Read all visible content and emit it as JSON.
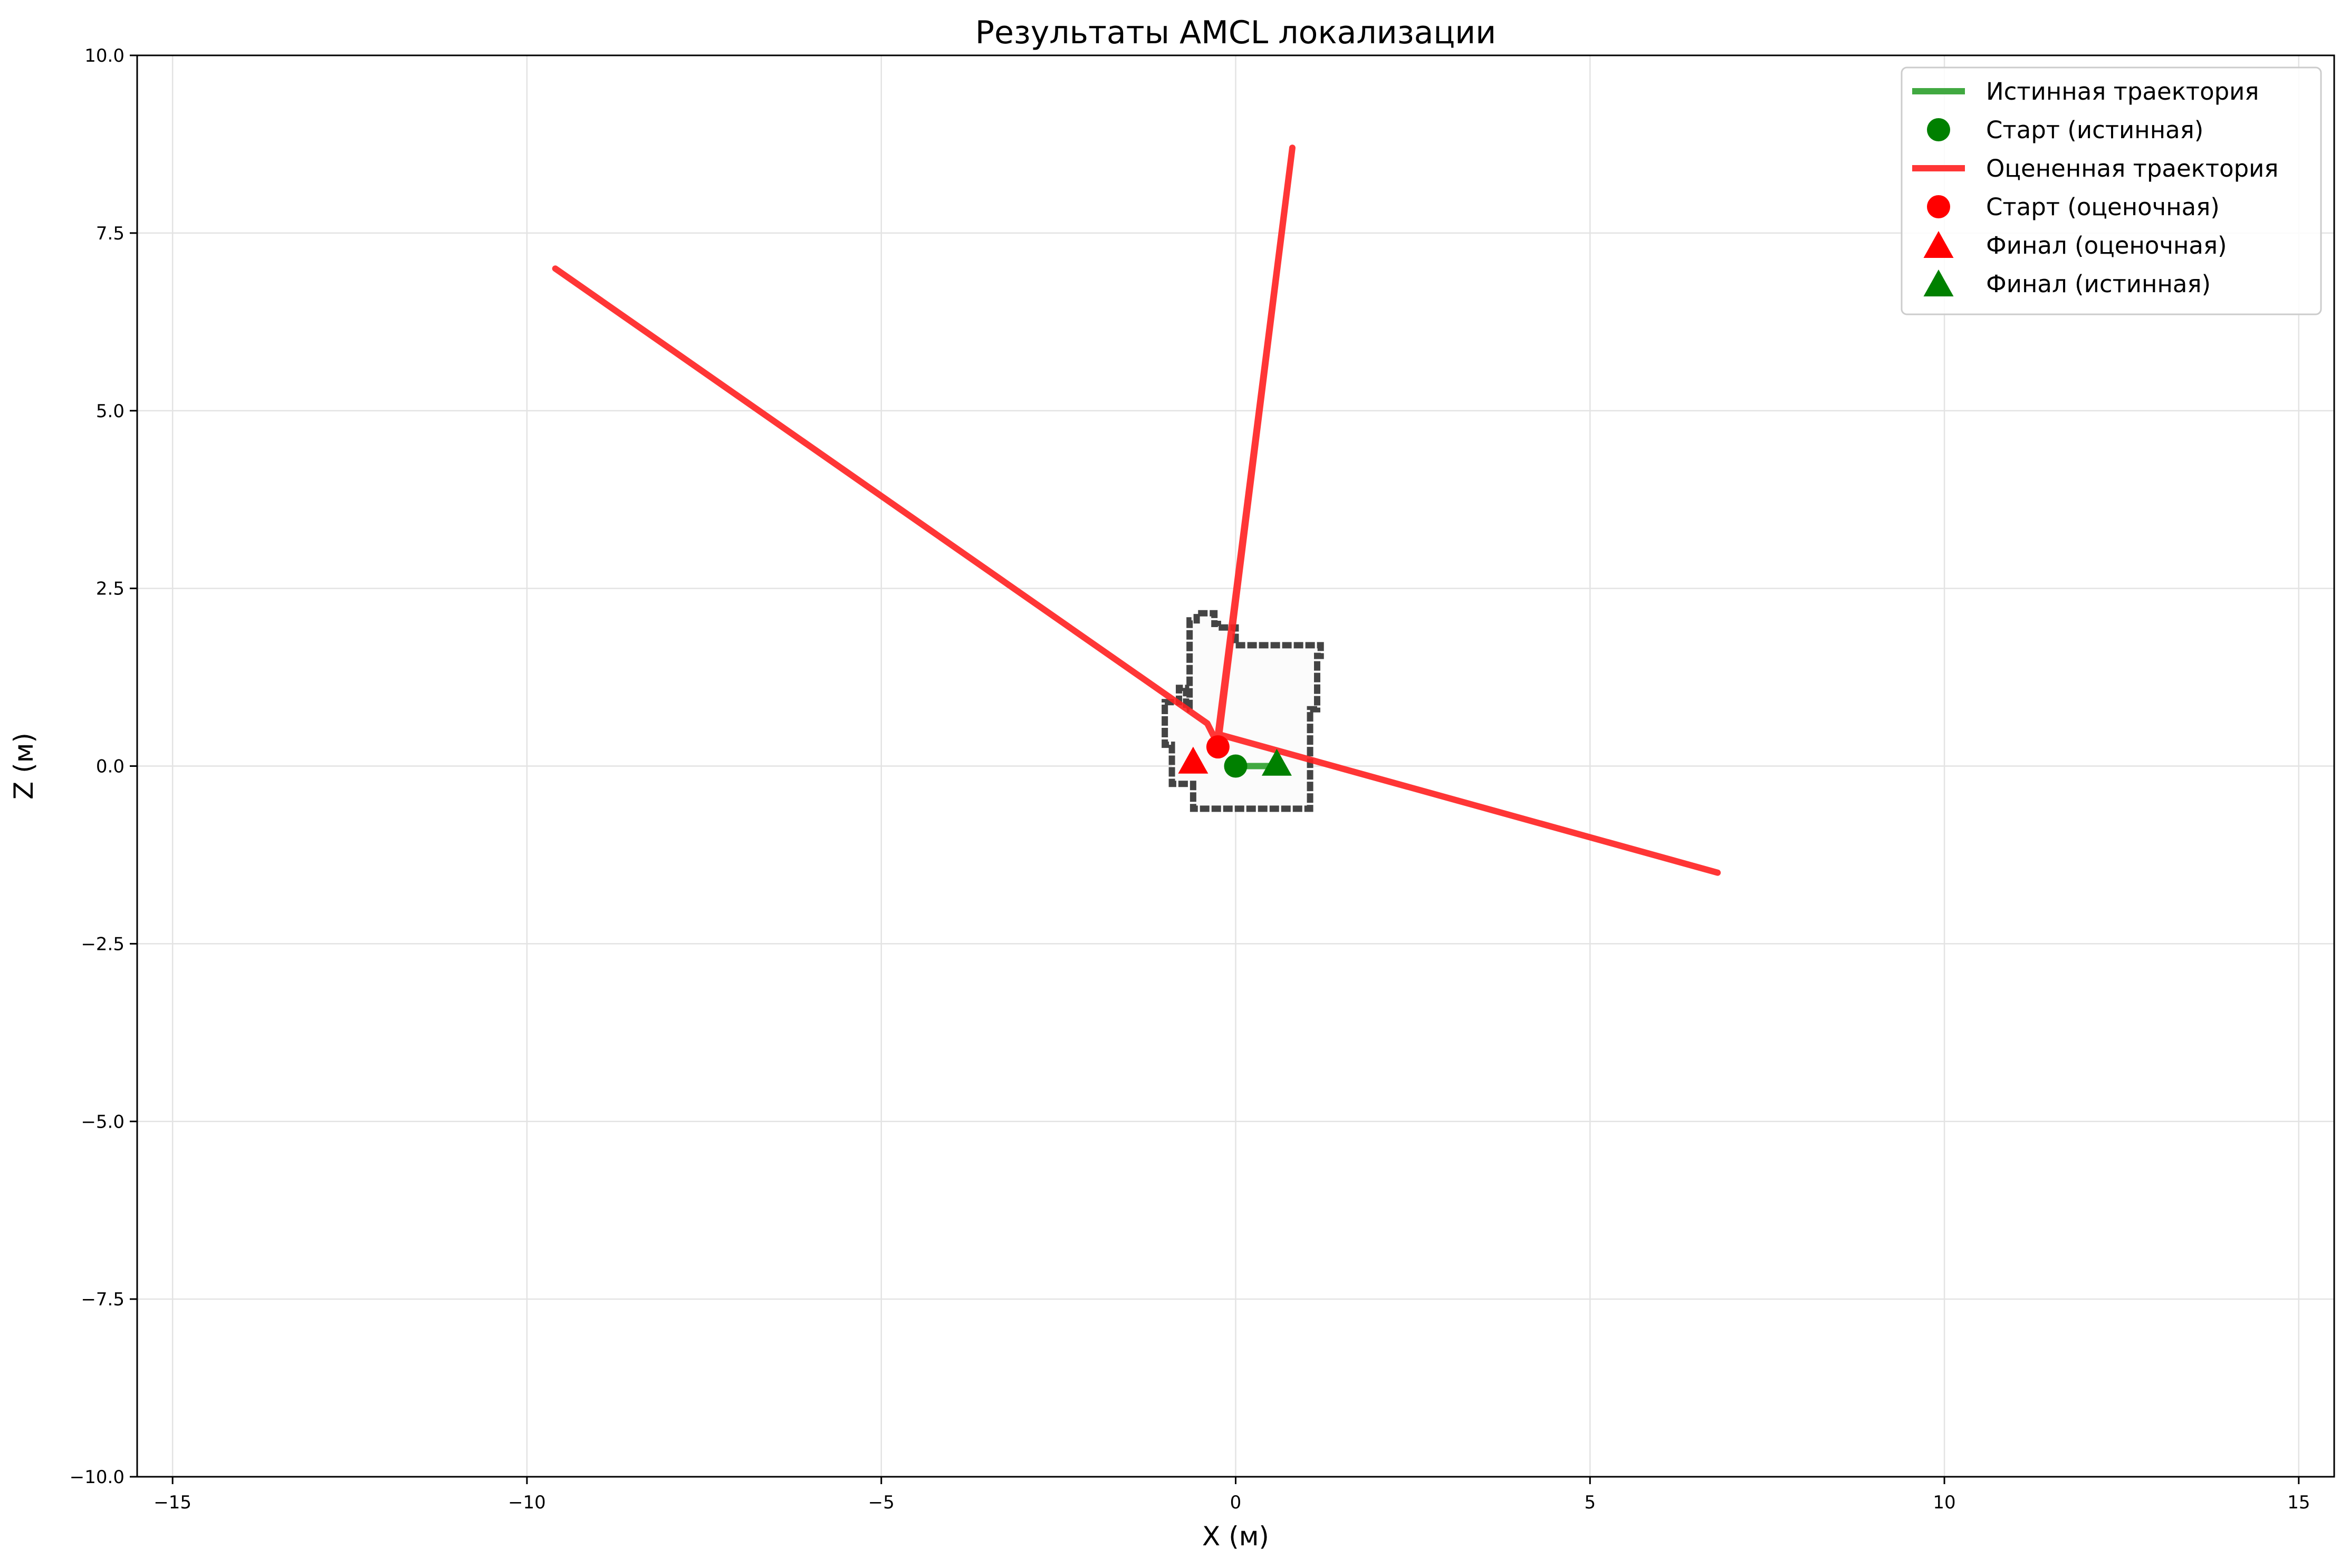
{
  "chart_data": {
    "type": "line",
    "title": "Результаты AMCL локализации",
    "xlabel": "X (м)",
    "ylabel": "Z (м)",
    "xlim": [
      -15.5,
      15.5
    ],
    "ylim": [
      -10,
      10
    ],
    "xticks": [
      -15,
      -10,
      -5,
      0,
      5,
      10,
      15
    ],
    "yticks": [
      -10.0,
      -7.5,
      -5.0,
      -2.5,
      0.0,
      2.5,
      5.0,
      7.5,
      10.0
    ],
    "xtick_labels": [
      "−15",
      "−10",
      "−5",
      "0",
      "5",
      "10",
      "15"
    ],
    "ytick_labels": [
      "−10.0",
      "−7.5",
      "−5.0",
      "−2.5",
      "0.0",
      "2.5",
      "5.0",
      "7.5",
      "10.0"
    ],
    "grid": true,
    "legend_position": "top-right",
    "colors": {
      "true": "#2ca02c",
      "estimated": "#ff2020",
      "true_marker": "#008000",
      "estimated_marker": "#ff0000",
      "map": "#444444"
    },
    "series": [
      {
        "name": "Истинная траектория",
        "kind": "line",
        "color": "#2ca02c",
        "x": [
          0.0,
          0.58
        ],
        "y": [
          0.0,
          0.0
        ]
      },
      {
        "name": "Старт (истинная)",
        "kind": "marker-circle",
        "color": "#008000",
        "x": [
          0.0
        ],
        "y": [
          0.0
        ]
      },
      {
        "name": "Оцененная траектория",
        "kind": "line",
        "color": "#ff2020",
        "x": [
          -9.6,
          -0.4,
          -0.25,
          0.8,
          -0.25,
          6.8
        ],
        "y": [
          7.0,
          0.6,
          0.3,
          8.7,
          0.45,
          -1.5
        ]
      },
      {
        "name": "Старт (оценочная)",
        "kind": "marker-circle",
        "color": "#ff0000",
        "x": [
          -0.25
        ],
        "y": [
          0.27
        ]
      },
      {
        "name": "Финал (оценочная)",
        "kind": "marker-triangle",
        "color": "#ff0000",
        "x": [
          -0.6
        ],
        "y": [
          0.05
        ]
      },
      {
        "name": "Финал (истинная)",
        "kind": "marker-triangle",
        "color": "#008000",
        "x": [
          0.58
        ],
        "y": [
          0.02
        ]
      }
    ],
    "map_outline": {
      "color": "#444444",
      "x": [
        -0.65,
        -0.65,
        -0.55,
        -0.55,
        -0.3,
        -0.3,
        -0.25,
        -0.25,
        0.0,
        0.0,
        1.2,
        1.2,
        1.15,
        1.15,
        1.05,
        1.05,
        -0.6,
        -0.6,
        -0.9,
        -0.9,
        -1.0,
        -1.0,
        -0.8,
        -0.8,
        -0.7,
        -0.7,
        -0.65
      ],
      "y": [
        0.8,
        2.05,
        2.05,
        2.15,
        2.15,
        2.0,
        2.0,
        1.95,
        1.95,
        1.7,
        1.7,
        1.55,
        1.55,
        0.8,
        0.8,
        -0.6,
        -0.6,
        -0.25,
        -0.25,
        0.3,
        0.3,
        0.9,
        0.9,
        1.1,
        1.1,
        0.8,
        0.8
      ]
    }
  }
}
